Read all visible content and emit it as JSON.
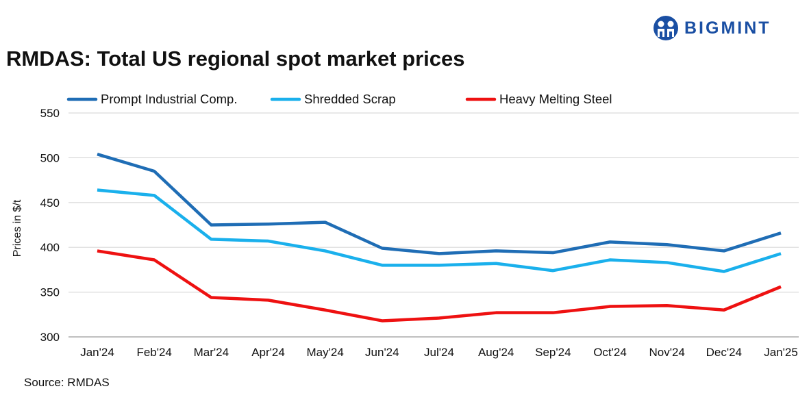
{
  "logo": {
    "text": "BIGMINT",
    "color": "#1a4fa3"
  },
  "source": "Source: RMDAS",
  "chart_data": {
    "type": "line",
    "title": "RMDAS: Total US regional spot market prices",
    "xlabel": "",
    "ylabel": "Prices in $/t",
    "ylim": [
      300,
      550
    ],
    "yticks": [
      300,
      350,
      400,
      450,
      500,
      550
    ],
    "grid": true,
    "legend_position": "top-left",
    "categories": [
      "Jan'24",
      "Feb'24",
      "Mar'24",
      "Apr'24",
      "May'24",
      "Jun'24",
      "Jul'24",
      "Aug'24",
      "Sep'24",
      "Oct'24",
      "Nov'24",
      "Dec'24",
      "Jan'25"
    ],
    "series": [
      {
        "name": "Prompt Industrial Comp.",
        "color": "#1f6db5",
        "values": [
          504,
          485,
          425,
          426,
          428,
          399,
          393,
          396,
          394,
          406,
          403,
          396,
          416
        ]
      },
      {
        "name": "Shredded Scrap",
        "color": "#1ab0ec",
        "values": [
          464,
          458,
          409,
          407,
          396,
          380,
          380,
          382,
          374,
          386,
          383,
          373,
          393
        ]
      },
      {
        "name": "Heavy Melting Steel",
        "color": "#ee1111",
        "values": [
          396,
          386,
          344,
          341,
          330,
          318,
          321,
          327,
          327,
          334,
          335,
          330,
          356
        ]
      }
    ]
  }
}
